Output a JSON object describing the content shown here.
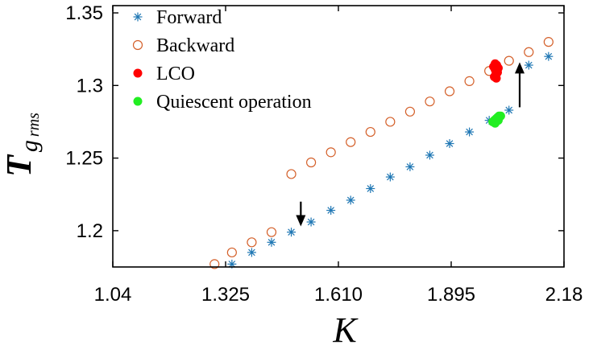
{
  "chart_data": {
    "type": "scatter",
    "title": "",
    "xlabel": "K",
    "ylabel_main": "T",
    "ylabel_sub": "g",
    "ylabel_subsub": "rms",
    "xlim": [
      1.04,
      2.18
    ],
    "ylim": [
      1.175,
      1.355
    ],
    "xticks": [
      1.04,
      1.325,
      1.61,
      1.895,
      2.18
    ],
    "xtick_labels": [
      "1.04",
      "1.325",
      "1.610",
      "1.895",
      "2.18"
    ],
    "yticks": [
      1.2,
      1.25,
      1.3,
      1.35
    ],
    "ytick_labels": [
      "1.2",
      "1.25",
      "1.3",
      "1.35"
    ],
    "legend_position": "top-left",
    "series": [
      {
        "name": "Forward",
        "marker": "asterisk",
        "color": "#1f77b4",
        "x": [
          1.341,
          1.391,
          1.441,
          1.491,
          1.541,
          1.591,
          1.641,
          1.691,
          1.741,
          1.791,
          1.841,
          1.891,
          1.941,
          1.991,
          2.041,
          2.091,
          2.141
        ],
        "y": [
          1.177,
          1.185,
          1.192,
          1.199,
          1.206,
          1.214,
          1.221,
          1.229,
          1.237,
          1.244,
          1.252,
          1.26,
          1.268,
          1.276,
          1.283,
          1.314,
          1.32
        ]
      },
      {
        "name": "Backward",
        "marker": "open-circle",
        "color": "#d4602a",
        "x": [
          1.297,
          1.341,
          1.391,
          1.441,
          1.491,
          1.541,
          1.591,
          1.641,
          1.691,
          1.741,
          1.791,
          1.841,
          1.891,
          1.941,
          1.991,
          2.041,
          2.091,
          2.141
        ],
        "y": [
          1.177,
          1.185,
          1.192,
          1.199,
          1.239,
          1.247,
          1.254,
          1.261,
          1.268,
          1.275,
          1.282,
          1.289,
          1.296,
          1.303,
          1.31,
          1.317,
          1.323,
          1.33
        ]
      },
      {
        "name": "LCO",
        "marker": "filled-circle",
        "color": "#ff0000",
        "x": [
          2.002,
          2.004,
          2.006,
          2.008,
          2.01,
          2.012,
          2.014,
          2.006,
          2.009
        ],
        "y": [
          1.313,
          1.306,
          1.311,
          1.308,
          1.314,
          1.309,
          1.312,
          1.315,
          1.305
        ]
      },
      {
        "name": "Quiescent operation",
        "marker": "filled-circle",
        "color": "#22ee22",
        "x": [
          2.0,
          2.004,
          2.008,
          2.012,
          2.016,
          2.02,
          2.006,
          2.014
        ],
        "y": [
          1.275,
          1.276,
          1.277,
          1.278,
          1.279,
          1.279,
          1.274,
          1.276
        ]
      }
    ],
    "annotations": [
      {
        "type": "arrow",
        "direction": "down",
        "x": 1.515,
        "y_from": 1.22,
        "y_to": 1.203
      },
      {
        "type": "arrow",
        "direction": "up",
        "x": 2.068,
        "y_from": 1.285,
        "y_to": 1.316
      }
    ]
  }
}
